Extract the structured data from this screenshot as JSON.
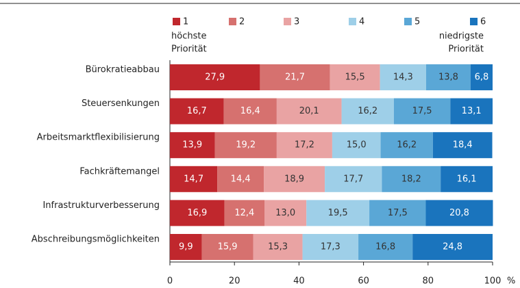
{
  "chart_data": {
    "type": "stacked_bar_horizontal",
    "categories": [
      "Bürokratieabbau",
      "Steuersenkungen",
      "Arbeitsmarktflexibilisierung",
      "Fachkräftemangel",
      "Infrastrukturverbesserung",
      "Abschreibungsmöglichkeiten"
    ],
    "series": [
      {
        "name": "1",
        "color": "#c0272d",
        "label_color": "#ffffff",
        "values": [
          27.9,
          16.7,
          13.9,
          14.7,
          16.9,
          9.9
        ],
        "value_labels": [
          "27,9",
          "16,7",
          "13,9",
          "14,7",
          "16,9",
          "9,9"
        ]
      },
      {
        "name": "2",
        "color": "#d6716f",
        "label_color": "#ffffff",
        "values": [
          21.7,
          16.4,
          19.2,
          14.4,
          12.4,
          15.9
        ],
        "value_labels": [
          "21,7",
          "16,4",
          "19,2",
          "14,4",
          "12,4",
          "15,9"
        ]
      },
      {
        "name": "3",
        "color": "#e9a3a3",
        "label_color": "#333333",
        "values": [
          15.5,
          20.1,
          17.2,
          18.9,
          13.0,
          15.3
        ],
        "value_labels": [
          "15,5",
          "20,1",
          "17,2",
          "18,9",
          "13,0",
          "15,3"
        ]
      },
      {
        "name": "4",
        "color": "#9ecfe8",
        "label_color": "#333333",
        "values": [
          14.3,
          16.2,
          15.0,
          17.7,
          19.5,
          17.3
        ],
        "value_labels": [
          "14,3",
          "16,2",
          "15,0",
          "17,7",
          "19,5",
          "17,3"
        ]
      },
      {
        "name": "5",
        "color": "#5aa7d6",
        "label_color": "#333333",
        "values": [
          13.8,
          17.5,
          16.2,
          18.2,
          17.5,
          16.8
        ],
        "value_labels": [
          "13,8",
          "17,5",
          "16,2",
          "18,2",
          "17,5",
          "16,8"
        ]
      },
      {
        "name": "6",
        "color": "#1a74bd",
        "label_color": "#ffffff",
        "values": [
          6.8,
          13.1,
          18.4,
          16.1,
          20.8,
          24.8
        ],
        "value_labels": [
          "6,8",
          "13,1",
          "18,4",
          "16,1",
          "20,8",
          "24,8"
        ]
      }
    ],
    "legend_notes": {
      "first": [
        "höchste",
        "Priorität"
      ],
      "last": [
        "niedrigste",
        "Priorität"
      ]
    },
    "xlim": [
      0,
      100
    ],
    "xticks": [
      0,
      20,
      40,
      60,
      80,
      100
    ],
    "x_unit": "%"
  }
}
